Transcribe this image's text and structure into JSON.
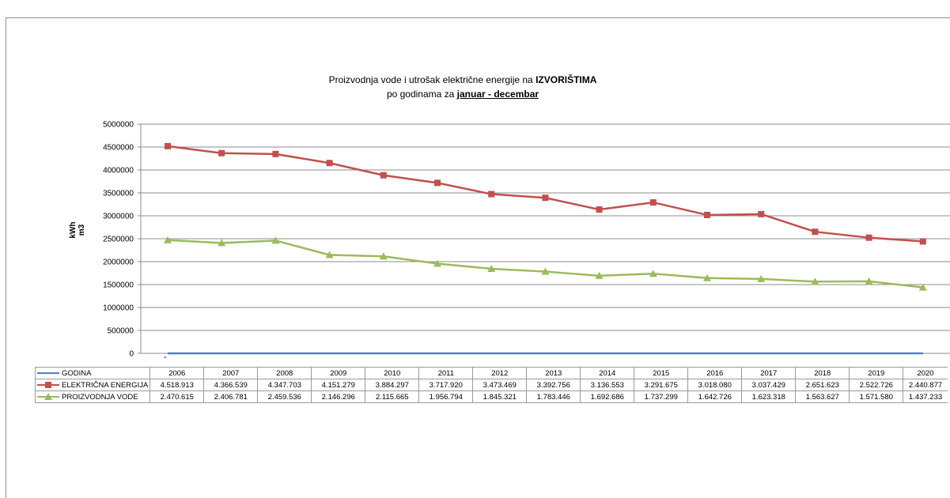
{
  "title": {
    "line1_prefix": "Proizvodnja vode i utrošak električne energije na ",
    "line1_bold": "IZVORIŠTIMA",
    "line2_prefix": "po godinama za  ",
    "line2_underlined": "januar - decembar"
  },
  "dash_label": "-",
  "chart_data": {
    "type": "line",
    "title": "Proizvodnja vode i utrošak električne energije na IZVORIŠTIMA po godinama za januar - decembar",
    "ylabel": "kWh m3",
    "ylabel_lines": [
      "kWh",
      "m3"
    ],
    "xlabel": "",
    "ylim": [
      0,
      5000000
    ],
    "yticks": [
      0,
      500000,
      1000000,
      1500000,
      2000000,
      2500000,
      3000000,
      3500000,
      4000000,
      4500000,
      5000000
    ],
    "ytick_labels": [
      "0",
      "500000",
      "1000000",
      "1500000",
      "2000000",
      "2500000",
      "3000000",
      "3500000",
      "4000000",
      "4500000",
      "5000000"
    ],
    "grid": true,
    "legend": "data table",
    "categories": [
      "2006",
      "2007",
      "2008",
      "2009",
      "2010",
      "2011",
      "2012",
      "2013",
      "2014",
      "2015",
      "2016",
      "2017",
      "2018",
      "2019",
      "2020"
    ],
    "series": [
      {
        "name": "GODINA",
        "color": "#4f81bd",
        "marker": "none",
        "values": [
          0,
          0,
          0,
          0,
          0,
          0,
          0,
          0,
          0,
          0,
          0,
          0,
          0,
          0,
          0
        ],
        "labels": [
          "2006",
          "2007",
          "2008",
          "2009",
          "2010",
          "2011",
          "2012",
          "2013",
          "2014",
          "2015",
          "2016",
          "2017",
          "2018",
          "2019",
          "2020"
        ]
      },
      {
        "name": "ELEKTRIČNA ENERGIJA",
        "color": "#c0504d",
        "marker": "square",
        "values": [
          4518913,
          4366539,
          4347703,
          4151279,
          3884297,
          3717920,
          3473469,
          3392756,
          3136553,
          3291675,
          3018080,
          3037429,
          2651623,
          2522726,
          2440877
        ],
        "labels": [
          "4.518.913",
          "4.366.539",
          "4.347.703",
          "4.151.279",
          "3.884.297",
          "3.717.920",
          "3.473.469",
          "3.392.756",
          "3.136.553",
          "3.291.675",
          "3.018.080",
          "3.037.429",
          "2.651.623",
          "2.522.726",
          "2.440.877"
        ]
      },
      {
        "name": "PROIZVODNJA VODE",
        "color": "#9bbb59",
        "marker": "triangle",
        "values": [
          2470615,
          2406781,
          2459536,
          2146296,
          2115665,
          1956794,
          1845321,
          1783446,
          1692686,
          1737299,
          1642726,
          1623318,
          1563627,
          1571580,
          1437233
        ],
        "labels": [
          "2.470.615",
          "2.406.781",
          "2.459.536",
          "2.146.296",
          "2.115.665",
          "1.956.794",
          "1.845.321",
          "1.783.446",
          "1.692.686",
          "1.737.299",
          "1.642.726",
          "1.623.318",
          "1.563.627",
          "1.571.580",
          "1.437.233"
        ]
      }
    ]
  }
}
